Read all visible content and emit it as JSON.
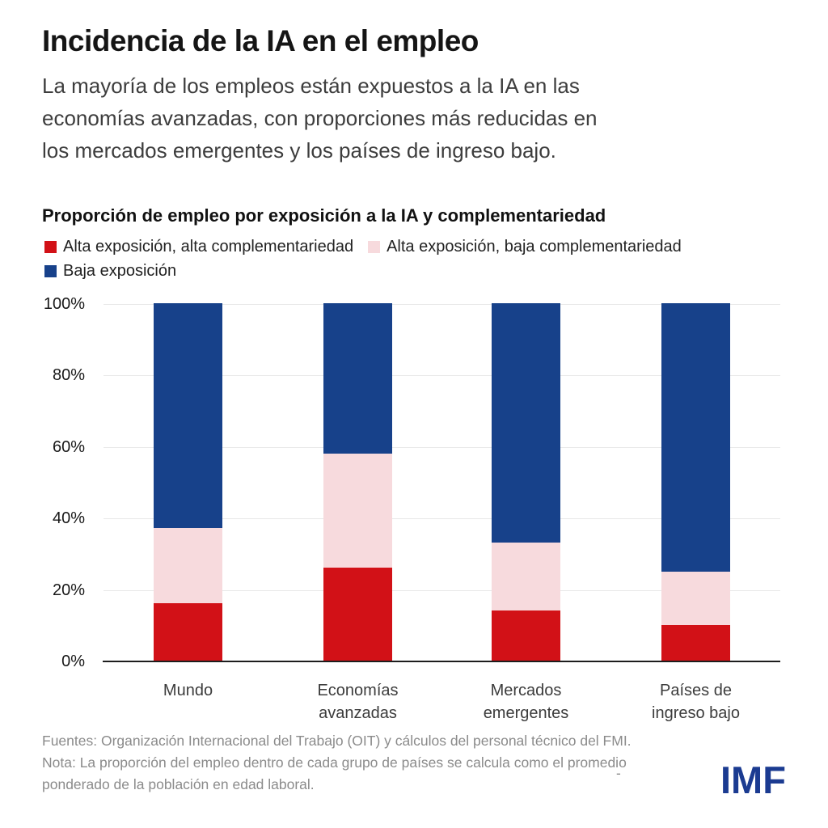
{
  "header": {
    "title": "Incidencia de la IA en el empleo",
    "subtitle": "La mayoría de los empleos están expuestos a la IA en las\neconomías avanzadas, con proporciones más reducidas en\nlos mercados emergentes y los países de ingreso bajo."
  },
  "chart": {
    "title": "Proporción de empleo por exposición a la IA y complementariedad"
  },
  "chart_data": {
    "type": "bar",
    "stacked": true,
    "title": "Proporción de empleo por exposición a la IA y complementariedad",
    "categories": [
      "Mundo",
      "Economías\navanzadas",
      "Mercados\nemergentes",
      "Países de\ningreso bajo"
    ],
    "series": [
      {
        "name": "Alta exposición, alta complementariedad",
        "color": "#d21117",
        "values": [
          16,
          26,
          14,
          10
        ]
      },
      {
        "name": "Alta exposición, baja complementariedad",
        "color": "#f7dadd",
        "values": [
          21,
          32,
          19,
          15
        ]
      },
      {
        "name": "Baja exposición",
        "color": "#17418a",
        "values": [
          63,
          42,
          67,
          75
        ]
      }
    ],
    "unit": "%",
    "ylim": [
      0,
      100
    ],
    "yticks": [
      "100%",
      "80%",
      "60%",
      "40%",
      "20%",
      "0%"
    ],
    "grid": true,
    "legend_position": "top-left"
  },
  "footer": {
    "sources": "Fuentes: Organización Internacional del Trabajo (OIT) y cálculos del personal técnico del FMI.",
    "note": "Nota: La proporción del empleo dentro de cada grupo de países se calcula como el promedio\nponderado de la población en edad laboral.",
    "dash": "-",
    "logo": "IMF",
    "logo_color": "#1b3b91"
  }
}
